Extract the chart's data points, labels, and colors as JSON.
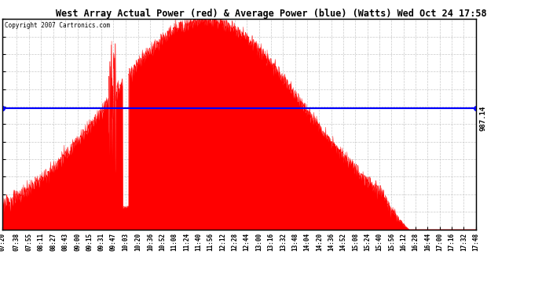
{
  "title": "West Array Actual Power (red) & Average Power (blue) (Watts) Wed Oct 24 17:58",
  "copyright": "Copyright 2007 Cartronics.com",
  "avg_power": 987.14,
  "avg_label": "987.14",
  "ymax": 1715.6,
  "yticks": [
    0.0,
    143.0,
    285.9,
    428.9,
    571.9,
    714.8,
    857.8,
    1000.7,
    1143.7,
    1286.7,
    1429.6,
    1572.6,
    1715.6
  ],
  "bg_color": "#ffffff",
  "fill_color": "#ff0000",
  "line_color": "#0000ff",
  "grid_color": "#bbbbbb",
  "time_labels": [
    "07:20",
    "07:38",
    "07:55",
    "08:11",
    "08:27",
    "08:43",
    "09:00",
    "09:15",
    "09:31",
    "09:47",
    "10:03",
    "10:20",
    "10:36",
    "10:52",
    "11:08",
    "11:24",
    "11:40",
    "11:56",
    "12:12",
    "12:28",
    "12:44",
    "13:00",
    "13:16",
    "13:32",
    "13:48",
    "14:04",
    "14:20",
    "14:36",
    "14:52",
    "15:08",
    "15:24",
    "15:40",
    "15:56",
    "16:12",
    "16:28",
    "16:44",
    "17:00",
    "17:16",
    "17:32",
    "17:48"
  ]
}
